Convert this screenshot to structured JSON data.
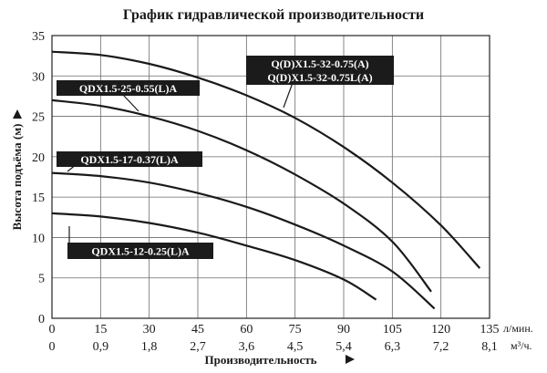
{
  "chart_data": {
    "type": "line",
    "title": "График гидравлической производительности",
    "xlabel": "Производительность",
    "ylabel": "Высота подъёма (м)",
    "x_unit_primary": "л/мин.",
    "x_unit_secondary": "м³/ч.",
    "xlim": [
      0,
      135
    ],
    "ylim": [
      0,
      35
    ],
    "x_ticks_primary": [
      "0",
      "15",
      "30",
      "45",
      "60",
      "75",
      "90",
      "105",
      "120",
      "135"
    ],
    "x_ticks_secondary": [
      "0",
      "0,9",
      "1,8",
      "2,7",
      "3,6",
      "4,5",
      "5,4",
      "6,3",
      "7,2",
      "8,1"
    ],
    "y_ticks": [
      "0",
      "5",
      "10",
      "15",
      "20",
      "25",
      "30",
      "35"
    ],
    "grid": true,
    "series": [
      {
        "name": "Q(D)X1.5-32-0.75(A)\nQ(D)X1.5-32-0.75L(A)",
        "x": [
          0,
          15,
          30,
          45,
          60,
          75,
          90,
          105,
          120,
          132
        ],
        "y": [
          33,
          32.6,
          31.5,
          29.8,
          27.6,
          24.8,
          21.2,
          16.8,
          11.5,
          6.2
        ]
      },
      {
        "name": "QDX1.5-25-0.55(L)A",
        "x": [
          0,
          15,
          30,
          45,
          60,
          75,
          90,
          105,
          117
        ],
        "y": [
          27,
          26.3,
          25,
          23.2,
          20.8,
          17.8,
          14.2,
          9.5,
          3.3
        ]
      },
      {
        "name": "QDX1.5-17-0.37(L)A",
        "x": [
          0,
          15,
          30,
          45,
          60,
          75,
          90,
          105,
          118
        ],
        "y": [
          18,
          17.6,
          16.8,
          15.5,
          13.8,
          11.6,
          9,
          5.8,
          1.2
        ]
      },
      {
        "name": "QDX1.5-12-0.25(L)A",
        "x": [
          0,
          15,
          30,
          45,
          60,
          75,
          90,
          100
        ],
        "y": [
          13,
          12.6,
          11.8,
          10.6,
          9,
          7.2,
          4.8,
          2.3
        ]
      }
    ]
  }
}
